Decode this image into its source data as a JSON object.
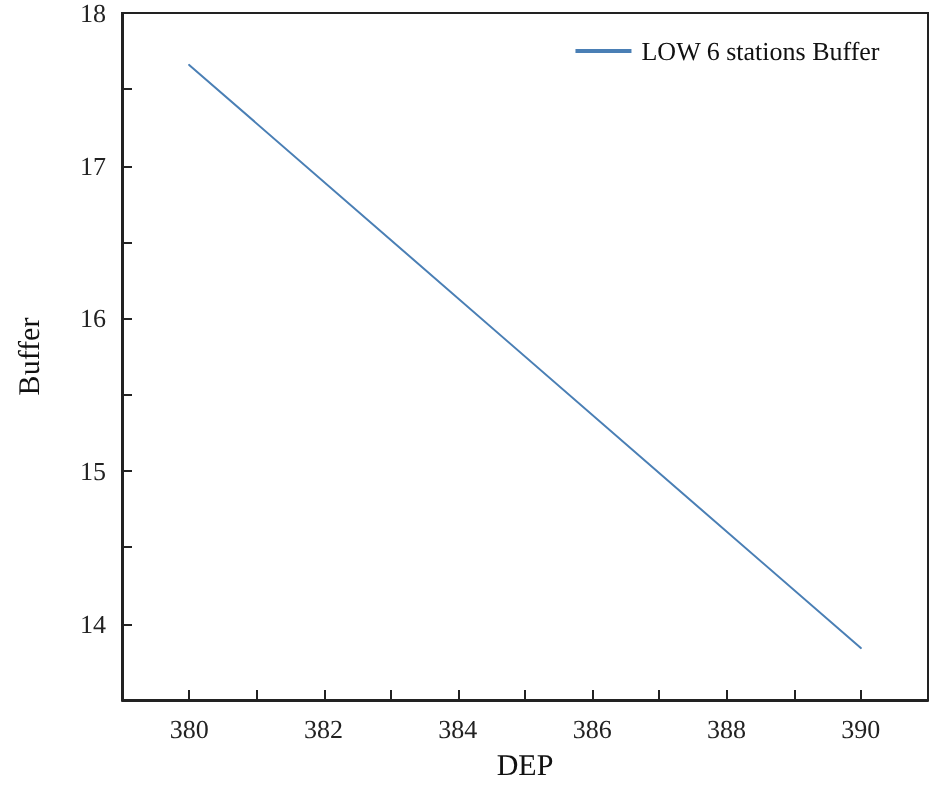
{
  "chart_data": {
    "type": "line",
    "xlabel": "DEP",
    "ylabel": "Buffer",
    "x": [
      380,
      390
    ],
    "series": [
      {
        "name": "LOW 6 stations Buffer",
        "color": "#4a7fb5",
        "values": [
          17.66,
          13.84
        ]
      }
    ],
    "xlim": [
      379,
      391
    ],
    "xticks": [
      380,
      {
        "value": 381,
        "label": null
      },
      382,
      {
        "value": 383,
        "label": null
      },
      384,
      {
        "value": 385,
        "label": null
      },
      386,
      {
        "value": 387,
        "label": null
      },
      388,
      {
        "value": 389,
        "label": null
      },
      390
    ],
    "ylim": [
      13.5,
      18
    ],
    "yticks": [
      14,
      {
        "value": 14.5,
        "label": null
      },
      15,
      {
        "value": 15.5,
        "label": null
      },
      16,
      {
        "value": 16.5,
        "label": null
      },
      17,
      {
        "value": 17.5,
        "label": null
      },
      18
    ],
    "grid": false,
    "legend": "top right",
    "marker": "none",
    "line_style": "solid"
  }
}
